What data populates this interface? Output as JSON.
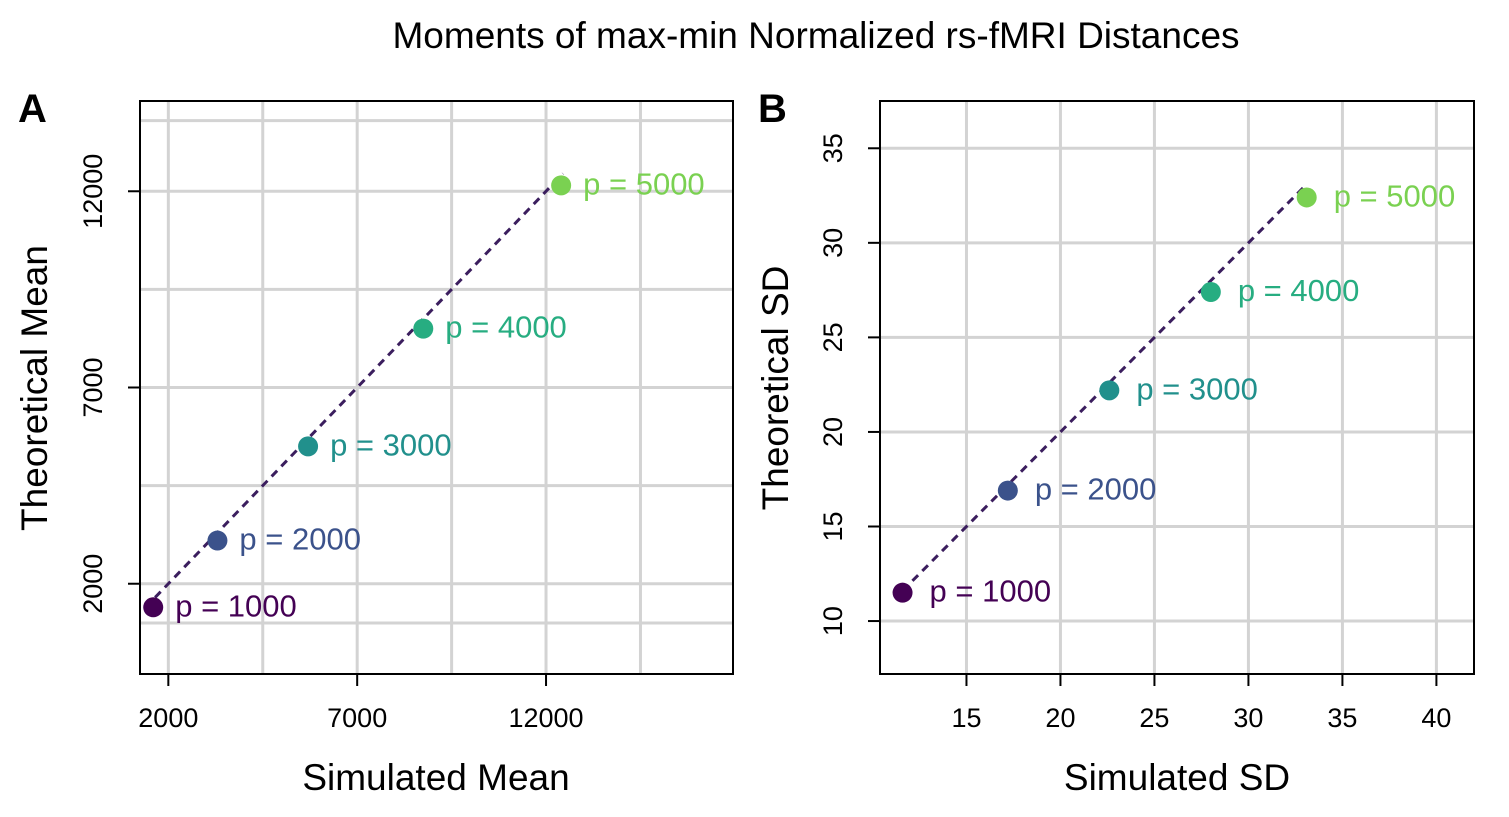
{
  "title": "Moments of max-min Normalized rs-fMRI Distances",
  "chart_data": [
    {
      "panel": "A",
      "type": "scatter",
      "xlabel": "Simulated Mean",
      "ylabel": "Theoretical Mean",
      "xlim": [
        1250,
        16950
      ],
      "ylim": [
        -300,
        14300
      ],
      "xticks": [
        2000,
        7000,
        12000
      ],
      "yticks": [
        2000,
        7000,
        12000
      ],
      "xgrid": [
        2000,
        7000,
        12000,
        4500,
        9500,
        14500
      ],
      "ygrid": [
        2000,
        7000,
        12000,
        -500,
        4500,
        9500,
        14500,
        13800,
        1000
      ],
      "grid": true,
      "line": {
        "style": "dashed",
        "from": [
          1650,
          1650
        ],
        "to": [
          12450,
          12450
        ]
      },
      "points": [
        {
          "label": "p = 1000",
          "x": 1600,
          "y": 1400,
          "color": "#440154"
        },
        {
          "label": "p = 2000",
          "x": 3300,
          "y": 3100,
          "color": "#3B528B"
        },
        {
          "label": "p = 3000",
          "x": 5700,
          "y": 5500,
          "color": "#21908C"
        },
        {
          "label": "p = 4000",
          "x": 8750,
          "y": 8500,
          "color": "#27AD81"
        },
        {
          "label": "p = 5000",
          "x": 12400,
          "y": 12150,
          "color": "#7AD151"
        }
      ]
    },
    {
      "panel": "B",
      "type": "scatter",
      "xlabel": "Simulated SD",
      "ylabel": "Theoretical SD",
      "xlim": [
        10.4,
        42
      ],
      "ylim": [
        7.2,
        37.5
      ],
      "xticks": [
        15,
        20,
        25,
        30,
        35,
        40
      ],
      "yticks": [
        10,
        15,
        20,
        25,
        30,
        35
      ],
      "grid": true,
      "line": {
        "style": "dashed",
        "from": [
          11.6,
          11.6
        ],
        "to": [
          33.1,
          33.1
        ]
      },
      "points": [
        {
          "label": "p = 1000",
          "x": 11.6,
          "y": 11.5,
          "color": "#440154"
        },
        {
          "label": "p = 2000",
          "x": 17.2,
          "y": 16.9,
          "color": "#3B528B"
        },
        {
          "label": "p = 3000",
          "x": 22.6,
          "y": 22.2,
          "color": "#21908C"
        },
        {
          "label": "p = 4000",
          "x": 28.0,
          "y": 27.4,
          "color": "#27AD81"
        },
        {
          "label": "p = 5000",
          "x": 33.1,
          "y": 32.4,
          "color": "#7AD151"
        }
      ]
    }
  ]
}
